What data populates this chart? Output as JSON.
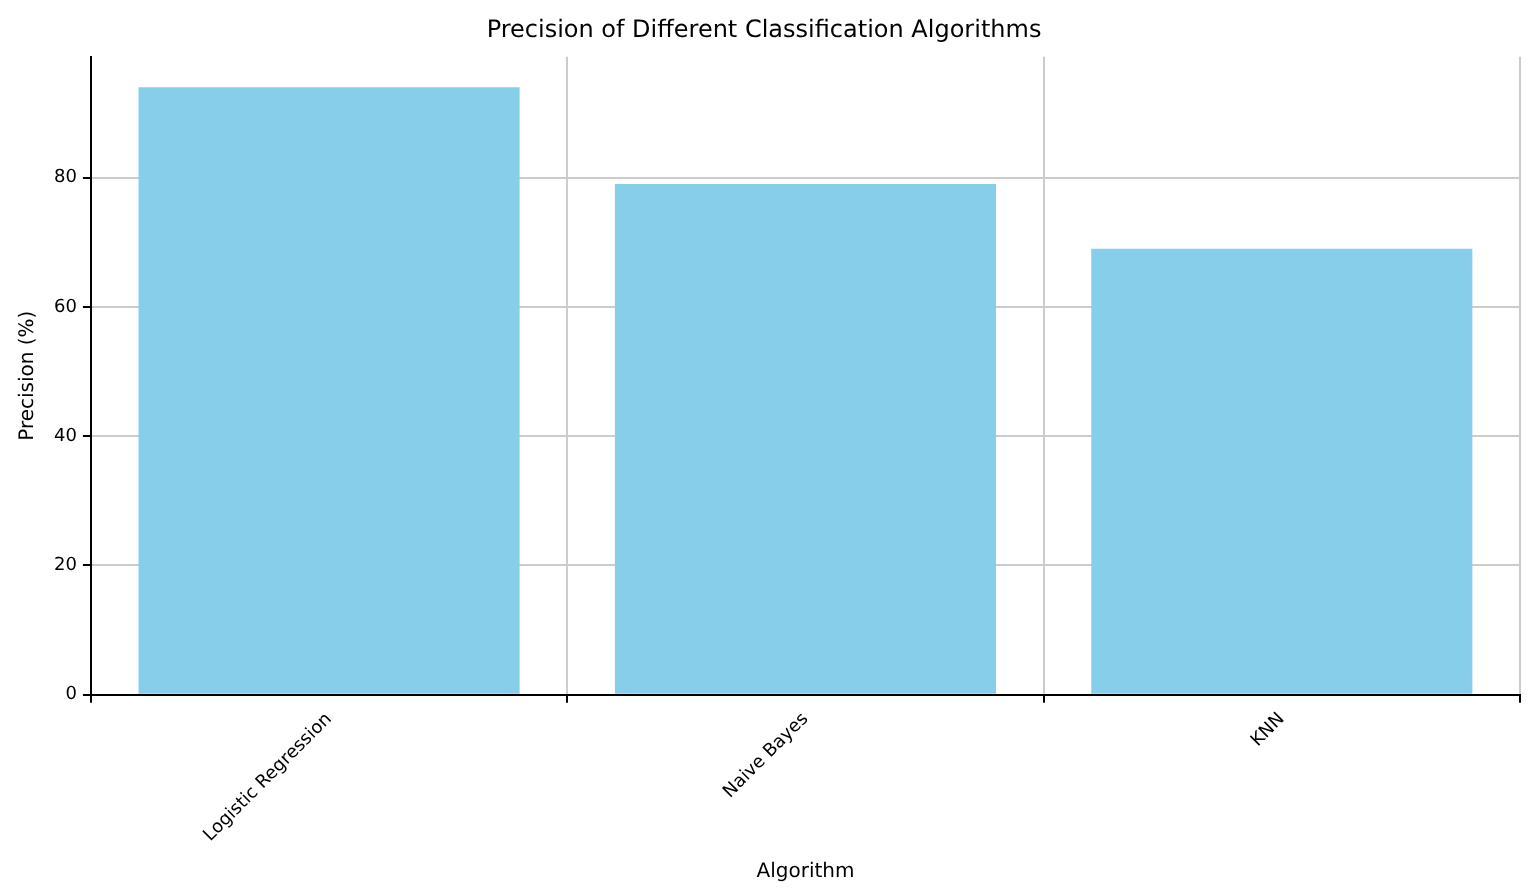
{
  "chart_data": {
    "type": "bar",
    "title": "Precision of Different Classification Algorithms",
    "xlabel": "Algorithm",
    "ylabel": "Precision (%)",
    "categories": [
      "Logistic Regression",
      "Naive Bayes",
      "KNN"
    ],
    "values": [
      94,
      79,
      69
    ],
    "color": "#87ceeb",
    "ylim": [
      0,
      98.7
    ],
    "yticks": [
      0,
      20,
      40,
      60,
      80
    ],
    "grid": true
  }
}
